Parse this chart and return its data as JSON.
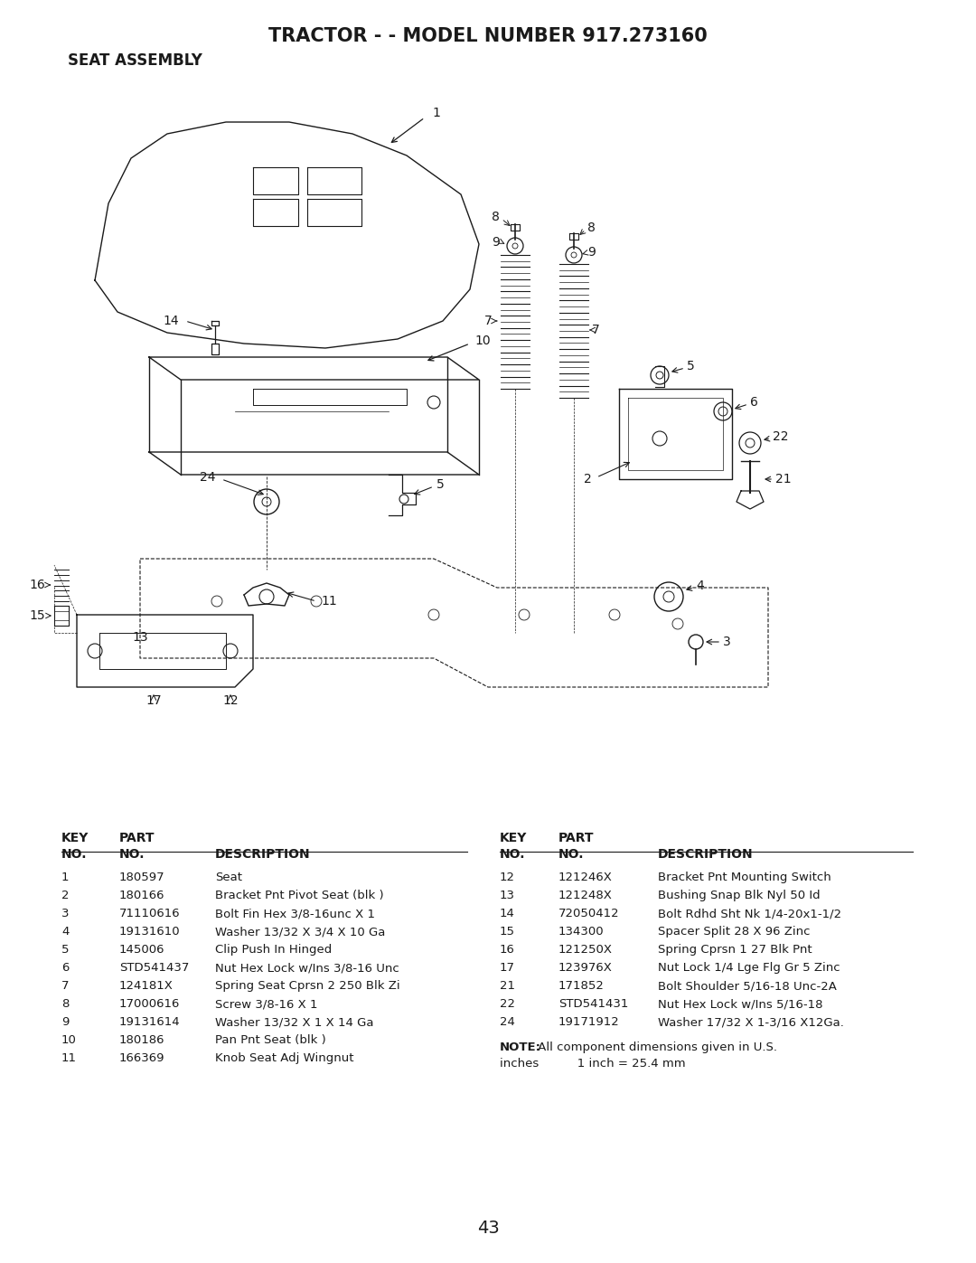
{
  "title": "TRACTOR - - MODEL NUMBER 917.273160",
  "subtitle": "SEAT ASSEMBLY",
  "page_number": "43",
  "bg": "#ffffff",
  "fg": "#1a1a1a",
  "left_parts": [
    {
      "key": "1",
      "part": "180597",
      "desc": "Seat"
    },
    {
      "key": "2",
      "part": "180166",
      "desc": "Bracket Pnt Pivot Seat (blk )"
    },
    {
      "key": "3",
      "part": "71110616",
      "desc": "Bolt Fin Hex 3/8-16unc X 1"
    },
    {
      "key": "4",
      "part": "19131610",
      "desc": "Washer 13/32 X 3/4 X 10 Ga"
    },
    {
      "key": "5",
      "part": "145006",
      "desc": "Clip Push In Hinged"
    },
    {
      "key": "6",
      "part": "STD541437",
      "desc": "Nut Hex Lock w/Ins 3/8-16 Unc"
    },
    {
      "key": "7",
      "part": "124181X",
      "desc": "Spring Seat Cprsn 2 250 Blk Zi"
    },
    {
      "key": "8",
      "part": "17000616",
      "desc": "Screw 3/8-16 X 1"
    },
    {
      "key": "9",
      "part": "19131614",
      "desc": "Washer 13/32 X 1 X 14 Ga"
    },
    {
      "key": "10",
      "part": "180186",
      "desc": "Pan Pnt Seat (blk )"
    },
    {
      "key": "11",
      "part": "166369",
      "desc": "Knob Seat Adj Wingnut"
    }
  ],
  "right_parts": [
    {
      "key": "12",
      "part": "121246X",
      "desc": "Bracket Pnt Mounting Switch"
    },
    {
      "key": "13",
      "part": "121248X",
      "desc": "Bushing Snap Blk Nyl 50 Id"
    },
    {
      "key": "14",
      "part": "72050412",
      "desc": "Bolt Rdhd Sht Nk 1/4-20x1-1/2"
    },
    {
      "key": "15",
      "part": "134300",
      "desc": "Spacer Split 28 X 96 Zinc"
    },
    {
      "key": "16",
      "part": "121250X",
      "desc": "Spring Cprsn 1 27 Blk Pnt"
    },
    {
      "key": "17",
      "part": "123976X",
      "desc": "Nut Lock 1/4 Lge Flg Gr 5 Zinc"
    },
    {
      "key": "21",
      "part": "171852",
      "desc": "Bolt Shoulder 5/16-18 Unc-2A"
    },
    {
      "key": "22",
      "part": "STD541431",
      "desc": "Nut Hex Lock w/Ins 5/16-18"
    },
    {
      "key": "24",
      "part": "19171912",
      "desc": "Washer 17/32 X 1-3/16 X12Ga."
    }
  ],
  "note_bold": "NOTE:",
  "note_rest": " All component dimensions given in U.S.",
  "note2": "inches          1 inch = 25.4 mm"
}
